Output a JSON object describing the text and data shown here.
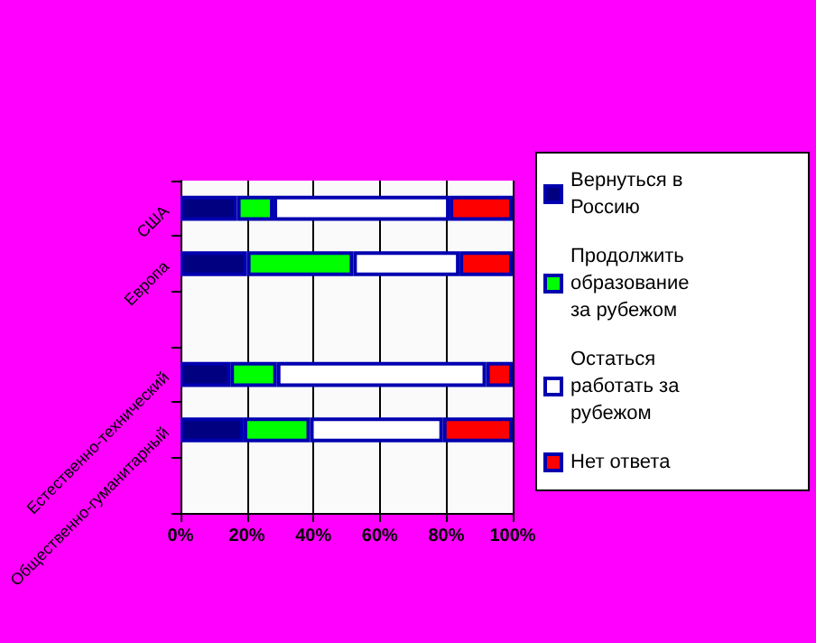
{
  "chart_data": {
    "type": "bar",
    "orientation": "horizontal",
    "stacked": true,
    "categories": [
      "США",
      "Европа",
      null,
      "Естественно-технический",
      "Общественно-гуманитарный",
      null
    ],
    "series": [
      {
        "name": "Вернуться в Россию",
        "color": "#000080",
        "values": [
          17,
          20,
          null,
          15,
          19,
          null
        ]
      },
      {
        "name": "Продолжить образование за рубежом",
        "color": "#00ff00",
        "values": [
          11,
          32,
          null,
          14,
          20,
          null
        ]
      },
      {
        "name": "Остаться работать за рубежом",
        "color": "#ffffff",
        "values": [
          53,
          32,
          null,
          63,
          40,
          null
        ]
      },
      {
        "name": "Нет ответа",
        "color": "#ff0000",
        "values": [
          19,
          16,
          null,
          8,
          21,
          null
        ]
      }
    ],
    "xlim": [
      0,
      100
    ],
    "xticks": [
      {
        "value": 0,
        "label": "0%"
      },
      {
        "value": 20,
        "label": "20%"
      },
      {
        "value": 40,
        "label": "40%"
      },
      {
        "value": 60,
        "label": "60%"
      },
      {
        "value": 80,
        "label": "80%"
      },
      {
        "value": 100,
        "label": "100%"
      }
    ],
    "grid": "x",
    "legend": "right"
  }
}
